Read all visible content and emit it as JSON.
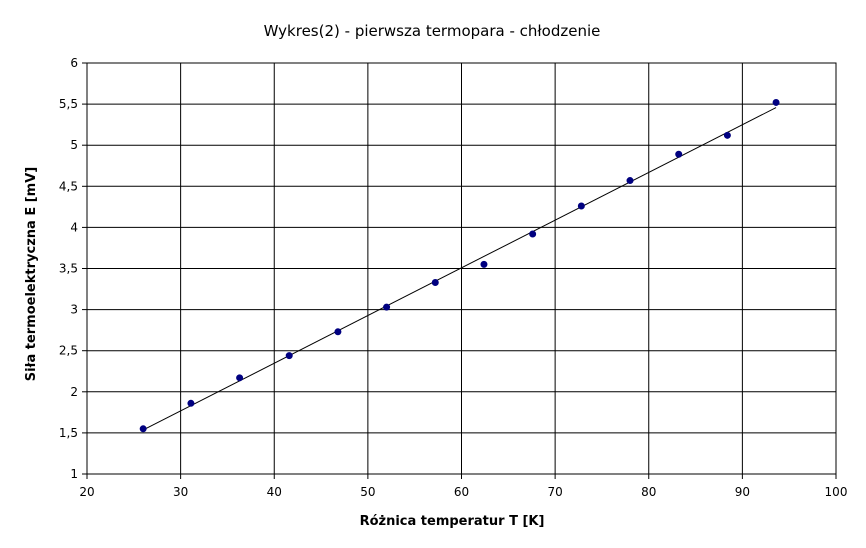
{
  "chart_data": {
    "type": "scatter",
    "title": "Wykres(2) - pierwsza termopara - chłodzenie",
    "xlabel": "Różnica temperatur T [K]",
    "ylabel": "Siła termoelektryczna E [mV]",
    "xlim": [
      20,
      100
    ],
    "ylim": [
      1,
      6
    ],
    "x_ticks": [
      20,
      30,
      40,
      50,
      60,
      70,
      80,
      90,
      100
    ],
    "x_tick_labels": [
      "20",
      "30",
      "40",
      "50",
      "60",
      "70",
      "80",
      "90",
      "100"
    ],
    "y_ticks": [
      1,
      1.5,
      2,
      2.5,
      3,
      3.5,
      4,
      4.5,
      5,
      5.5,
      6
    ],
    "y_tick_labels": [
      "1",
      "1,5",
      "2",
      "2,5",
      "3",
      "3,5",
      "4",
      "4,5",
      "5",
      "5,5",
      "6"
    ],
    "grid": true,
    "legend": "none",
    "series": [
      {
        "x": [
          26.0,
          31.1,
          36.3,
          41.6,
          46.8,
          52.0,
          57.2,
          62.4,
          67.6,
          72.8,
          78.0,
          83.2,
          88.4,
          93.6
        ],
        "y": [
          1.55,
          1.86,
          2.17,
          2.44,
          2.73,
          3.03,
          3.33,
          3.55,
          3.92,
          4.26,
          4.57,
          4.89,
          5.12,
          5.52
        ],
        "color": "#000080"
      }
    ],
    "trendline": {
      "type": "linear",
      "x_start": 26.0,
      "x_end": 93.6,
      "color": "#000000"
    }
  }
}
